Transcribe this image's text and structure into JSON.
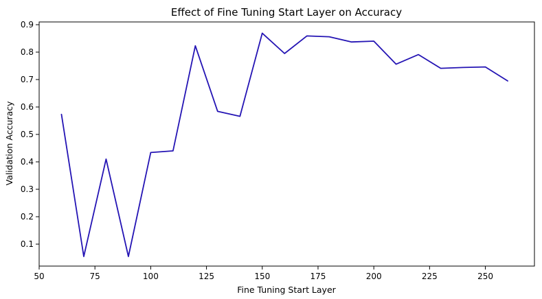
{
  "chart_data": {
    "type": "line",
    "title": "Effect of Fine Tuning Start Layer on Accuracy",
    "xlabel": "Fine Tuning Start Layer",
    "ylabel": "Validation Accuracy",
    "xlim": [
      50,
      272
    ],
    "ylim": [
      0.02,
      0.91
    ],
    "xticks": [
      50,
      75,
      100,
      125,
      150,
      175,
      200,
      225,
      250
    ],
    "yticks": [
      0.1,
      0.2,
      0.3,
      0.4,
      0.5,
      0.6,
      0.7,
      0.8,
      0.9
    ],
    "grid": false,
    "legend": "none",
    "series": [
      {
        "color": "#2414b4",
        "x": [
          60,
          70,
          80,
          90,
          100,
          110,
          120,
          130,
          140,
          150,
          160,
          170,
          180,
          190,
          200,
          210,
          220,
          230,
          240,
          250,
          260
        ],
        "values": [
          0.573,
          0.055,
          0.41,
          0.055,
          0.434,
          0.44,
          0.823,
          0.584,
          0.566,
          0.869,
          0.795,
          0.859,
          0.856,
          0.837,
          0.84,
          0.756,
          0.791,
          0.741,
          0.744,
          0.746,
          0.695
        ]
      }
    ]
  }
}
